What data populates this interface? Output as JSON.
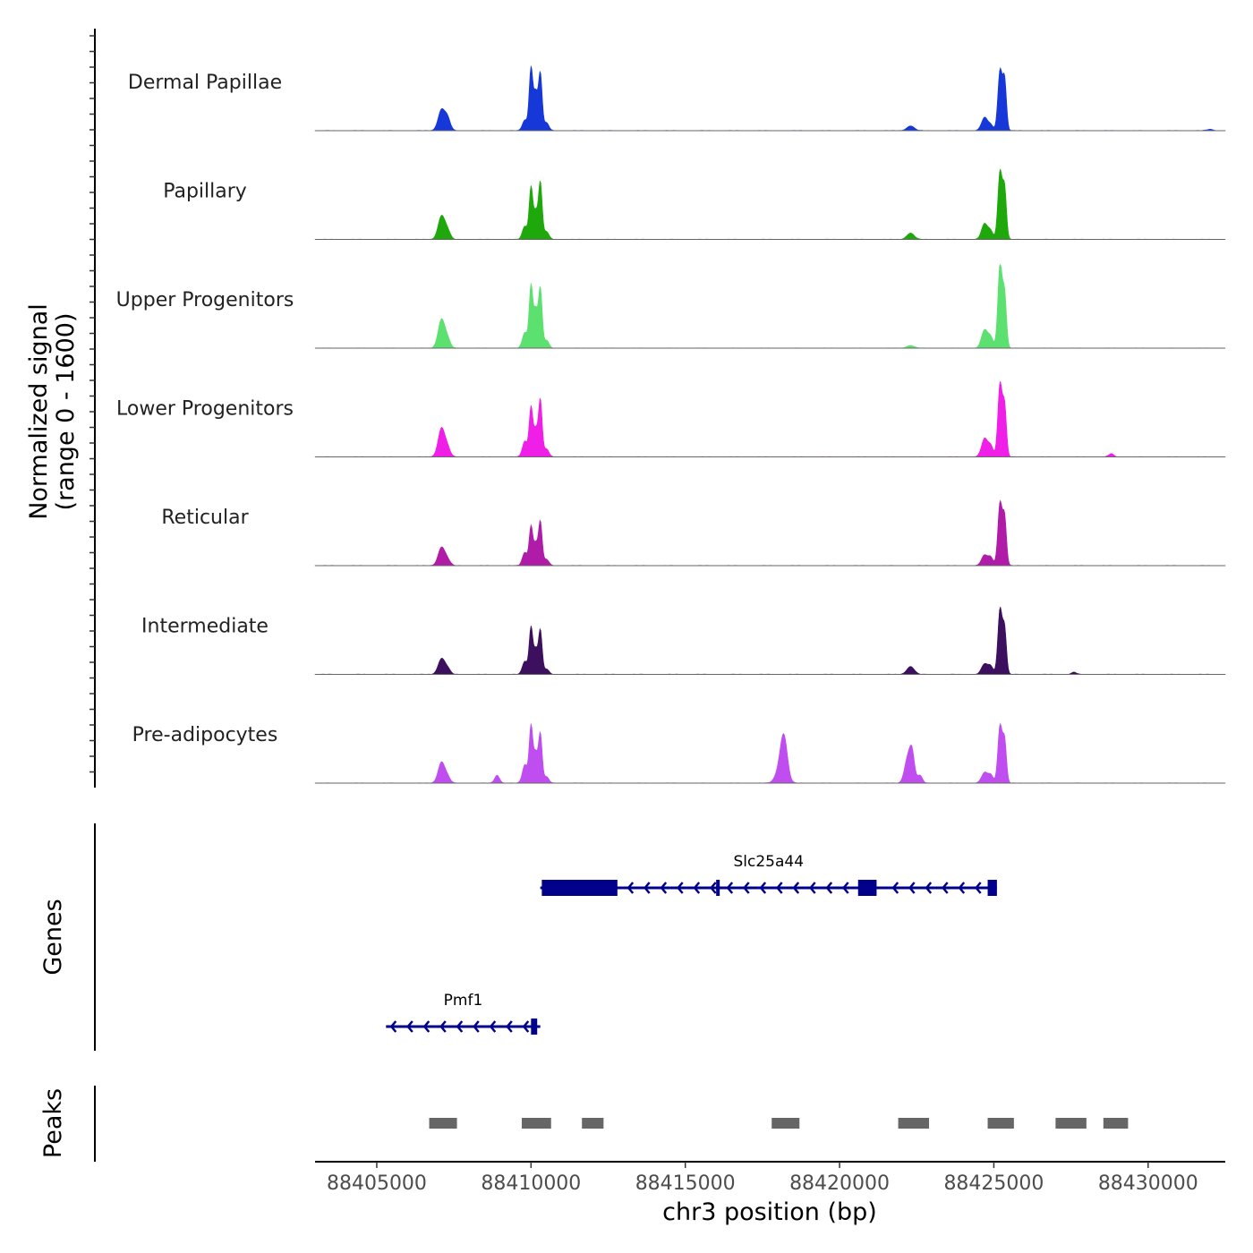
{
  "chart_data": {
    "type": "area",
    "title": "",
    "y_label_line1": "Normalized signal",
    "y_label_line2": "(range 0 - 1600)",
    "ylim": [
      0,
      1600
    ],
    "x_label": "chr3 position (bp)",
    "xlim": [
      88403000,
      88432500
    ],
    "x_ticks": [
      88405000,
      88410000,
      88415000,
      88420000,
      88425000,
      88430000
    ],
    "x_tick_labels": [
      "88405000",
      "88410000",
      "88415000",
      "88420000",
      "88425000",
      "88430000"
    ],
    "tracks": [
      {
        "name": "Dermal Papillae",
        "color": "#1638D8",
        "peaks": [
          [
            88407100,
            400,
            110
          ],
          [
            88407300,
            220,
            90
          ],
          [
            88409800,
            200,
            80
          ],
          [
            88410000,
            1200,
            60
          ],
          [
            88410150,
            700,
            60
          ],
          [
            88410300,
            1100,
            60
          ],
          [
            88410500,
            150,
            80
          ],
          [
            88422300,
            90,
            120
          ],
          [
            88424700,
            250,
            100
          ],
          [
            88424900,
            100,
            80
          ],
          [
            88425200,
            1150,
            70
          ],
          [
            88425350,
            950,
            60
          ],
          [
            88432000,
            25,
            100
          ]
        ]
      },
      {
        "name": "Papillary",
        "color": "#1FA80C",
        "peaks": [
          [
            88407100,
            450,
            110
          ],
          [
            88407300,
            150,
            90
          ],
          [
            88409800,
            250,
            80
          ],
          [
            88410000,
            1000,
            60
          ],
          [
            88410150,
            500,
            60
          ],
          [
            88410300,
            1100,
            60
          ],
          [
            88410500,
            150,
            80
          ],
          [
            88422300,
            120,
            120
          ],
          [
            88424700,
            300,
            100
          ],
          [
            88424900,
            150,
            80
          ],
          [
            88425200,
            1300,
            70
          ],
          [
            88425350,
            950,
            60
          ]
        ]
      },
      {
        "name": "Upper Progenitors",
        "color": "#5CE070",
        "peaks": [
          [
            88407100,
            550,
            110
          ],
          [
            88407300,
            150,
            90
          ],
          [
            88409800,
            300,
            80
          ],
          [
            88410000,
            1200,
            60
          ],
          [
            88410150,
            700,
            60
          ],
          [
            88410300,
            1150,
            60
          ],
          [
            88410500,
            150,
            80
          ],
          [
            88422300,
            50,
            120
          ],
          [
            88424700,
            350,
            100
          ],
          [
            88424900,
            200,
            80
          ],
          [
            88425200,
            1600,
            70
          ],
          [
            88425350,
            1000,
            60
          ]
        ]
      },
      {
        "name": "Lower Progenitors",
        "color": "#F01FE8",
        "peaks": [
          [
            88407100,
            550,
            110
          ],
          [
            88407300,
            150,
            90
          ],
          [
            88409800,
            300,
            80
          ],
          [
            88410000,
            950,
            60
          ],
          [
            88410150,
            500,
            60
          ],
          [
            88410300,
            1100,
            60
          ],
          [
            88410500,
            150,
            80
          ],
          [
            88424700,
            350,
            100
          ],
          [
            88424900,
            200,
            80
          ],
          [
            88425200,
            1400,
            70
          ],
          [
            88425350,
            950,
            60
          ],
          [
            88428800,
            60,
            80
          ]
        ]
      },
      {
        "name": "Reticular",
        "color": "#B01BA8",
        "peaks": [
          [
            88407100,
            350,
            110
          ],
          [
            88407300,
            100,
            90
          ],
          [
            88409800,
            250,
            80
          ],
          [
            88410000,
            750,
            60
          ],
          [
            88410150,
            400,
            60
          ],
          [
            88410300,
            850,
            60
          ],
          [
            88410500,
            120,
            80
          ],
          [
            88424700,
            200,
            100
          ],
          [
            88424900,
            150,
            80
          ],
          [
            88425200,
            1200,
            70
          ],
          [
            88425350,
            900,
            60
          ]
        ]
      },
      {
        "name": "Intermediate",
        "color": "#3C0F5F",
        "peaks": [
          [
            88407100,
            300,
            110
          ],
          [
            88407300,
            100,
            90
          ],
          [
            88409800,
            250,
            80
          ],
          [
            88410000,
            900,
            60
          ],
          [
            88410150,
            450,
            60
          ],
          [
            88410300,
            850,
            60
          ],
          [
            88410500,
            100,
            80
          ],
          [
            88422300,
            150,
            120
          ],
          [
            88424700,
            200,
            100
          ],
          [
            88424900,
            150,
            80
          ],
          [
            88425200,
            1250,
            70
          ],
          [
            88425350,
            850,
            60
          ],
          [
            88427600,
            40,
            80
          ]
        ]
      },
      {
        "name": "Pre-adipocytes",
        "color": "#C04DF0",
        "peaks": [
          [
            88407100,
            400,
            110
          ],
          [
            88407300,
            100,
            90
          ],
          [
            88408900,
            150,
            80
          ],
          [
            88409800,
            350,
            80
          ],
          [
            88410000,
            1100,
            60
          ],
          [
            88410150,
            550,
            60
          ],
          [
            88410300,
            950,
            60
          ],
          [
            88410500,
            120,
            80
          ],
          [
            88418200,
            700,
            110
          ],
          [
            88418100,
            300,
            150
          ],
          [
            88422200,
            450,
            100
          ],
          [
            88422350,
            550,
            80
          ],
          [
            88422600,
            150,
            80
          ],
          [
            88424700,
            200,
            100
          ],
          [
            88424900,
            150,
            80
          ],
          [
            88425200,
            1100,
            70
          ],
          [
            88425350,
            800,
            60
          ]
        ]
      }
    ],
    "genes": [
      {
        "name": "Slc25a44",
        "strand": "-",
        "start": 88410300,
        "end": 88425100,
        "color": "#00008B",
        "exons": [
          [
            88410350,
            88412800
          ],
          [
            88416000,
            88416100
          ],
          [
            88420600,
            88421200
          ],
          [
            88424800,
            88425100
          ]
        ]
      },
      {
        "name": "Pmf1",
        "strand": "-",
        "start": 88405300,
        "end": 88410300,
        "color": "#00008B",
        "exons": [
          [
            88410000,
            88410200
          ]
        ]
      }
    ],
    "peaks_track": {
      "label": "Peaks",
      "color": "#666666",
      "regions": [
        [
          88406700,
          88407600
        ],
        [
          88409700,
          88410650
        ],
        [
          88411650,
          88412350
        ],
        [
          88417800,
          88418700
        ],
        [
          88421900,
          88422900
        ],
        [
          88424800,
          88425650
        ],
        [
          88427000,
          88428000
        ],
        [
          88428550,
          88429350
        ]
      ]
    },
    "genes_label": "Genes"
  }
}
